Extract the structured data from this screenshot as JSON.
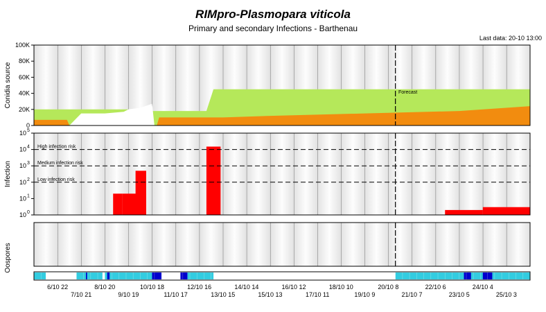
{
  "chart_data": {
    "type": "area",
    "title": "RIMpro-Plasmopara viticola",
    "subtitle": "Primary and secondary Infections - Barthenau",
    "last_data": "Last data: 20-10 13:00",
    "forecast_label": "Forecast",
    "panels": {
      "conidia": {
        "ylabel": "Conidia source",
        "yticks": [
          "0",
          "20K",
          "40K",
          "60K",
          "80K",
          "100K"
        ],
        "ylim": [
          0,
          100000
        ],
        "series": [
          {
            "color": "#b5e85a",
            "x": [
              0,
              4.6,
              4.8,
              7.3,
              7.6,
              21
            ],
            "y": [
              20000,
              20000,
              18000,
              18000,
              45000,
              45000
            ]
          },
          {
            "color": "#ffffff",
            "x": [
              1.5,
              2,
              3,
              3.8,
              4,
              4.5,
              5,
              5.1
            ],
            "y": [
              0,
              15000,
              15000,
              17000,
              20000,
              22000,
              27000,
              0
            ]
          },
          {
            "color": "#f28c0f",
            "x": [
              0,
              1.4,
              1.5,
              5.2,
              5.3,
              8,
              10,
              14,
              18,
              21
            ],
            "y": [
              7000,
              7000,
              0,
              0,
              10000,
              10000,
              12000,
              15000,
              18000,
              24000
            ]
          }
        ]
      },
      "infection": {
        "ylabel": "Infection",
        "yticks": [
          "10 0",
          "10 1",
          "10 2",
          "10 3",
          "10 4",
          "10 5"
        ],
        "thresholds": [
          "High infection risk",
          "Medium infection risk",
          "Low infection risk"
        ],
        "threshold_levels": [
          10000,
          1000,
          100
        ],
        "bars": [
          {
            "x_start": 3.35,
            "x_end": 3.75,
            "y": 20
          },
          {
            "x_start": 3.75,
            "x_end": 4.75,
            "y": 20
          },
          {
            "x_start": 4.3,
            "x_end": 4.75,
            "y": 500
          },
          {
            "x_start": 7.3,
            "x_end": 7.9,
            "y": 15000
          },
          {
            "x_start": 17.4,
            "x_end": 19,
            "y": 2
          },
          {
            "x_start": 19,
            "x_end": 21,
            "y": 3
          }
        ]
      },
      "oospores": {
        "ylabel": "Oospores"
      }
    },
    "forecast_x": 15.3,
    "x_tick_labels_row1": [
      "6/10 22",
      "8/10 20",
      "10/10 18",
      "12/10 16",
      "14/10 14",
      "16/10 12",
      "18/10 10",
      "20/10 8",
      "22/10 6",
      "24/10 4"
    ],
    "x_tick_labels_row2": [
      "7/10 21",
      "9/10 19",
      "11/10 17",
      "13/10 15",
      "15/10 13",
      "17/10 11",
      "19/10 9",
      "21/10 7",
      "23/10 5",
      "25/10 3"
    ],
    "colors": {
      "panel_gradient_dark": "#dcdcdc",
      "panel_gradient_light": "#fafafa",
      "green": "#b5e85a",
      "orange": "#f28c0f",
      "red": "#ff0000",
      "cyan": "#33cce0",
      "blue": "#0000cc"
    }
  }
}
